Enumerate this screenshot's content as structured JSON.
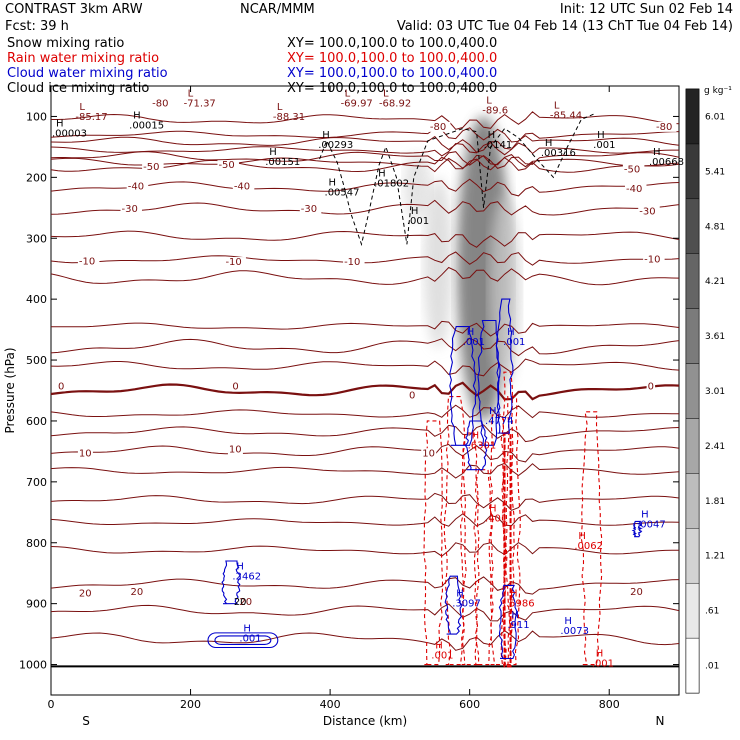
{
  "header": {
    "model": "CONTRAST  3km ARW",
    "center": "NCAR/MMM",
    "init": "Init: 12 UTC Sun 02 Feb 14",
    "fcst": "Fcst:   39 h",
    "valid": "Valid: 03 UTC Tue 04 Feb 14 (13 ChT Tue 04 Feb 14)"
  },
  "fields": [
    {
      "name": "Snow mixing ratio",
      "xy": "XY=  100.0,100.0 to 100.0,400.0",
      "color": "#000000"
    },
    {
      "name": "Rain water mixing ratio",
      "xy": "XY=  100.0,100.0 to 100.0,400.0",
      "color": "#dd0000"
    },
    {
      "name": "Cloud water mixing ratio",
      "xy": "XY=  100.0,100.0 to 100.0,400.0",
      "color": "#0000cc"
    },
    {
      "name": "Cloud ice mixing ratio",
      "xy": "XY=  100.0,100.0 to 100.0,400.0",
      "color": "#000000"
    }
  ],
  "chart_data": {
    "type": "contour-cross-section",
    "xlabel": "Distance (km)",
    "ylabel": "Pressure (hPa)",
    "xlim": [
      0,
      900
    ],
    "ylim": [
      1050,
      50
    ],
    "x_ticks": [
      0,
      200,
      400,
      600,
      800
    ],
    "y_ticks": [
      100,
      200,
      300,
      400,
      500,
      600,
      700,
      800,
      900,
      1000
    ],
    "x_end_labels": {
      "left": "S",
      "right": "N"
    },
    "colorbar": {
      "unit": "g kg⁻¹",
      "levels": [
        ".01",
        ".61",
        "1.21",
        "1.81",
        "2.41",
        "3.01",
        "3.61",
        "4.21",
        "4.81",
        "5.41",
        "6.01"
      ],
      "max": 6.61
    },
    "temperature_isotherms": {
      "color": "#7a1010",
      "levels": [
        -80,
        -50,
        -40,
        -30,
        -10,
        0,
        10,
        20
      ],
      "contours": [
        {
          "level": -80,
          "p": 105
        },
        {
          "level": -80,
          "p": 130
        },
        {
          "level": -80,
          "p": 142
        },
        {
          "level": -80,
          "p": 155
        },
        {
          "level": -70,
          "p": 167
        },
        {
          "level": -60,
          "p": 175
        },
        {
          "level": -50,
          "p": 182
        },
        {
          "level": -40,
          "p": 216
        },
        {
          "level": -30,
          "p": 252
        },
        {
          "level": -20,
          "p": 297
        },
        {
          "level": -10,
          "p": 335
        },
        {
          "level": -10,
          "p": 365
        },
        {
          "level": -10,
          "p": 445
        },
        {
          "level": -10,
          "p": 478
        },
        {
          "level": -5,
          "p": 510
        },
        {
          "level": 0,
          "p": 550
        },
        {
          "level": 5,
          "p": 588
        },
        {
          "level": 5,
          "p": 618
        },
        {
          "level": 10,
          "p": 650
        },
        {
          "level": 10,
          "p": 682
        },
        {
          "level": 10,
          "p": 730
        },
        {
          "level": 15,
          "p": 766
        },
        {
          "level": 15,
          "p": 812
        },
        {
          "level": 20,
          "p": 868
        },
        {
          "level": 20,
          "p": 912
        },
        {
          "level": 20,
          "p": 958
        }
      ],
      "labels": [
        {
          "text": "-80",
          "x": 145,
          "p": 84
        },
        {
          "text": "-80",
          "x": 543,
          "p": 122
        },
        {
          "text": "-80",
          "x": 867,
          "p": 122
        },
        {
          "text": "-50",
          "x": 132,
          "p": 188
        },
        {
          "text": "-50",
          "x": 240,
          "p": 185
        },
        {
          "text": "-50",
          "x": 821,
          "p": 192
        },
        {
          "text": "-40",
          "x": 110,
          "p": 220
        },
        {
          "text": "-40",
          "x": 262,
          "p": 220
        },
        {
          "text": "-40",
          "x": 824,
          "p": 224
        },
        {
          "text": "-30",
          "x": 101,
          "p": 257
        },
        {
          "text": "-30",
          "x": 358,
          "p": 257
        },
        {
          "text": "-30",
          "x": 843,
          "p": 261
        },
        {
          "text": "-10",
          "x": 40,
          "p": 343
        },
        {
          "text": "-10",
          "x": 250,
          "p": 344
        },
        {
          "text": "-10",
          "x": 420,
          "p": 344
        },
        {
          "text": "-10",
          "x": 850,
          "p": 340
        },
        {
          "text": "0",
          "x": 10,
          "p": 548
        },
        {
          "text": "0",
          "x": 260,
          "p": 548
        },
        {
          "text": "0",
          "x": 513,
          "p": 563
        },
        {
          "text": "0",
          "x": 855,
          "p": 548
        },
        {
          "text": "10",
          "x": 40,
          "p": 658
        },
        {
          "text": "10",
          "x": 255,
          "p": 652
        },
        {
          "text": "10",
          "x": 532,
          "p": 658
        },
        {
          "text": "20",
          "x": 40,
          "p": 888
        },
        {
          "text": "20",
          "x": 114,
          "p": 886
        },
        {
          "text": "20",
          "x": 270,
          "p": 902
        },
        {
          "text": "20",
          "x": 830,
          "p": 886
        }
      ]
    },
    "extrema_labels": [
      {
        "kind": "L",
        "value": "-85.17",
        "x": 35,
        "p": 106,
        "color": "#7a1010"
      },
      {
        "kind": "L",
        "value": "-71.37",
        "x": 190,
        "p": 84,
        "color": "#7a1010"
      },
      {
        "kind": "L",
        "value": "-88.31",
        "x": 318,
        "p": 106,
        "color": "#7a1010"
      },
      {
        "kind": "L",
        "value": "-69.97",
        "x": 415,
        "p": 84,
        "color": "#7a1010"
      },
      {
        "kind": "L",
        "value": "-68.92",
        "x": 470,
        "p": 84,
        "color": "#7a1010"
      },
      {
        "kind": "L",
        "value": "-89.6",
        "x": 618,
        "p": 95,
        "color": "#7a1010"
      },
      {
        "kind": "L",
        "value": "-85.44",
        "x": 715,
        "p": 103,
        "color": "#7a1010"
      },
      {
        "kind": "H",
        "value": ".00003",
        "x": 0,
        "p": 133,
        "color": "#000000"
      },
      {
        "kind": "H",
        "value": ".00015",
        "x": 112,
        "p": 120,
        "color": "#000000"
      },
      {
        "kind": "H",
        "value": ".00293",
        "x": 383,
        "p": 152,
        "color": "#000000"
      },
      {
        "kind": "H",
        "value": ".0141",
        "x": 620,
        "p": 152,
        "color": "#000000"
      },
      {
        "kind": "H",
        "value": ".00316",
        "x": 702,
        "p": 165,
        "color": "#000000"
      },
      {
        "kind": "H",
        "value": ".001",
        "x": 777,
        "p": 152,
        "color": "#000000"
      },
      {
        "kind": "H",
        "value": ".00668",
        "x": 868,
        "p": 180,
        "color": "#000000"
      },
      {
        "kind": "H",
        "value": ".00151",
        "x": 307,
        "p": 180,
        "color": "#000000"
      },
      {
        "kind": "H",
        "value": ".00547",
        "x": 392,
        "p": 230,
        "color": "#000000"
      },
      {
        "kind": "H",
        "value": ".01802",
        "x": 463,
        "p": 215,
        "color": "#000000"
      },
      {
        "kind": "H",
        "value": ".001",
        "x": 510,
        "p": 277,
        "color": "#000000"
      },
      {
        "kind": "H",
        "value": ".001",
        "x": 590,
        "p": 475,
        "color": "#0000cc"
      },
      {
        "kind": "H",
        "value": ".001",
        "x": 648,
        "p": 475,
        "color": "#0000cc"
      },
      {
        "kind": "H",
        "value": ".4774",
        "x": 622,
        "p": 605,
        "color": "#0000cc"
      },
      {
        "kind": "H",
        "value": ".6301",
        "x": 597,
        "p": 645,
        "color": "#dd0000"
      },
      {
        "kind": "H",
        "value": ".401",
        "x": 622,
        "p": 765,
        "color": "#dd0000"
      },
      {
        "kind": "H",
        "value": ".0062",
        "x": 750,
        "p": 810,
        "color": "#dd0000"
      },
      {
        "kind": "H",
        "value": ".0047",
        "x": 840,
        "p": 775,
        "color": "#0000cc"
      },
      {
        "kind": "H",
        "value": ".2462",
        "x": 260,
        "p": 860,
        "color": "#0000cc"
      },
      {
        "kind": "H",
        "value": ".3097",
        "x": 575,
        "p": 905,
        "color": "#0000cc"
      },
      {
        "kind": "H",
        "value": ".5986",
        "x": 652,
        "p": 905,
        "color": "#dd0000"
      },
      {
        "kind": "H",
        "value": ".911",
        "x": 654,
        "p": 940,
        "color": "#0000cc"
      },
      {
        "kind": "H",
        "value": ".0073",
        "x": 730,
        "p": 950,
        "color": "#0000cc"
      },
      {
        "kind": "H",
        "value": ".001",
        "x": 270,
        "p": 962,
        "color": "#0000cc"
      },
      {
        "kind": "H",
        "value": ".001",
        "x": 545,
        "p": 990,
        "color": "#dd0000"
      },
      {
        "kind": "H",
        "value": ".001",
        "x": 775,
        "p": 1003,
        "color": "#dd0000"
      }
    ],
    "contour_value_labels": [
      {
        "text": "20",
        "x": 262,
        "p": 902,
        "color": "#000000"
      }
    ],
    "snow_shading": [
      {
        "x": 620,
        "p_top": 100,
        "p_bot": 600,
        "max": 4.2
      },
      {
        "x": 525,
        "p_top": 160,
        "p_bot": 270,
        "max": 0.9
      },
      {
        "x": 555,
        "p_top": 200,
        "p_bot": 480,
        "max": 1.1
      },
      {
        "x": 650,
        "p_top": 230,
        "p_bot": 540,
        "max": 1.4
      }
    ]
  }
}
